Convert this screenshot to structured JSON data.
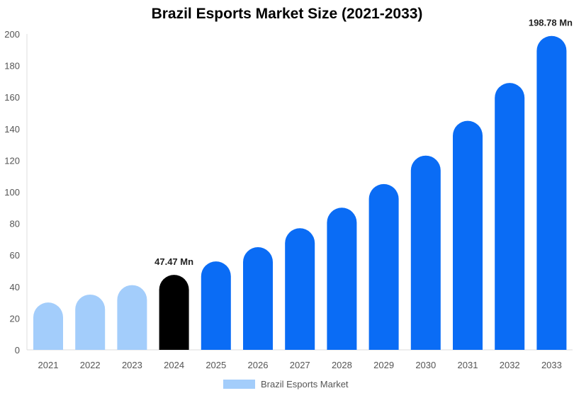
{
  "chart_data": {
    "type": "bar",
    "title": "Brazil Esports Market Size (2021-2033)",
    "categories": [
      "2021",
      "2022",
      "2023",
      "2024",
      "2025",
      "2026",
      "2027",
      "2028",
      "2029",
      "2030",
      "2031",
      "2032",
      "2033"
    ],
    "values": [
      30,
      35,
      41,
      47.47,
      56,
      65,
      77,
      90,
      105,
      123,
      145,
      169,
      198.78
    ],
    "bar_colors": [
      "#a3cdfb",
      "#a3cdfb",
      "#a3cdfb",
      "#000000",
      "#0a6cf5",
      "#0a6cf5",
      "#0a6cf5",
      "#0a6cf5",
      "#0a6cf5",
      "#0a6cf5",
      "#0a6cf5",
      "#0a6cf5",
      "#0a6cf5"
    ],
    "data_labels": {
      "2024": "47.47 Mn",
      "2033": "198.78 Mn"
    },
    "yticks": [
      0,
      20,
      40,
      60,
      80,
      100,
      120,
      140,
      160,
      180,
      200
    ],
    "ylim": [
      0,
      200
    ],
    "grid": false,
    "legend": {
      "label": "Brazil Esports Market",
      "color": "#a3cdfb",
      "position": "bottom"
    }
  }
}
